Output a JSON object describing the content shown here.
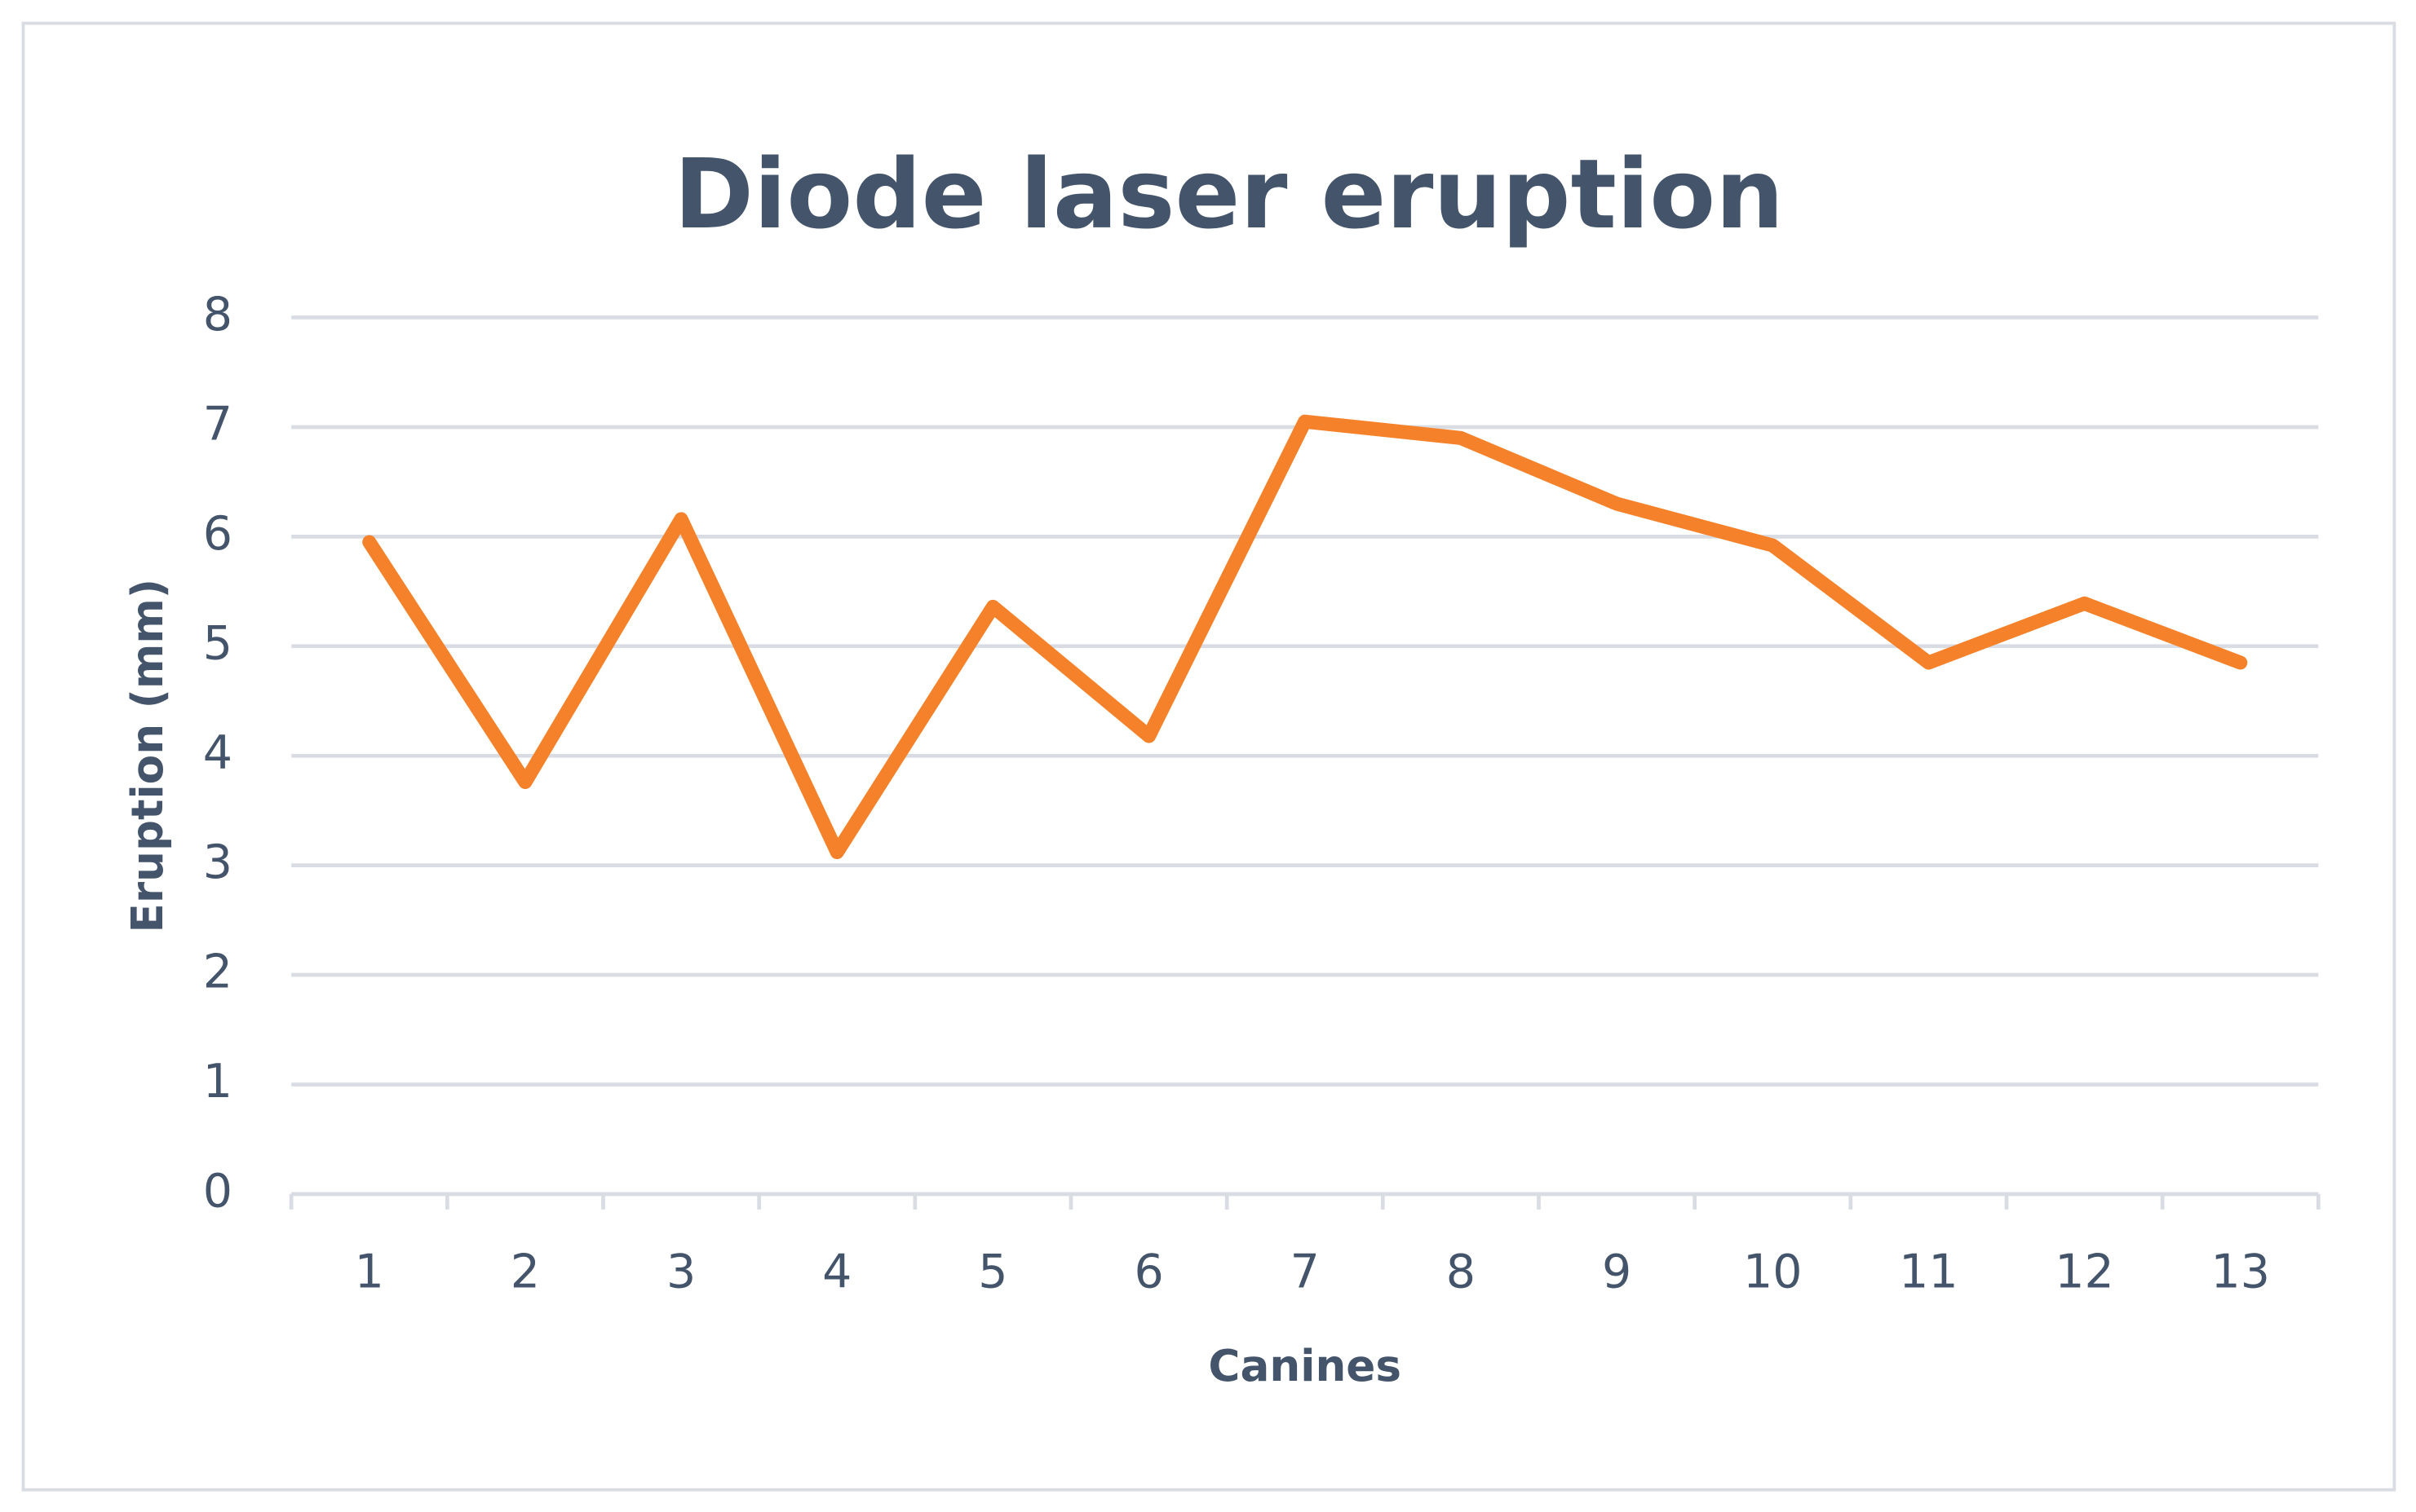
{
  "chart_data": {
    "type": "line",
    "title": "Diode laser eruption",
    "x_label": "Canines",
    "y_label": "Eruption (mm)",
    "categories": [
      "1",
      "2",
      "3",
      "4",
      "5",
      "6",
      "7",
      "8",
      "9",
      "10",
      "11",
      "12",
      "13"
    ],
    "series": [
      {
        "name": "Diode laser eruption",
        "color": "#f5822a",
        "values": [
          5.95,
          3.76,
          6.16,
          3.12,
          5.36,
          4.18,
          7.05,
          6.9,
          6.3,
          5.92,
          4.85,
          5.39,
          4.85
        ]
      }
    ],
    "ylim": [
      0,
      8
    ],
    "yticks": [
      0,
      1,
      2,
      3,
      4,
      5,
      6,
      7,
      8
    ],
    "grid": true,
    "legend": false
  }
}
